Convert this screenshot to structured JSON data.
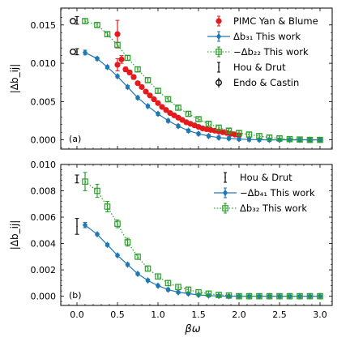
{
  "figure": {
    "xlabel": "βω"
  },
  "colors": {
    "pimc": "#e41a1c",
    "blue": "#1f77b4",
    "green": "#2ca02c",
    "black": "#000000"
  },
  "chart_data": [
    {
      "type": "scatter",
      "panel_label": "(a)",
      "ylabel": "|Δb_ij|",
      "xlim": [
        -0.2,
        3.15
      ],
      "ylim": [
        -0.0012,
        0.0172
      ],
      "xticks": [
        0.0,
        0.5,
        1.0,
        1.5,
        2.0,
        2.5,
        3.0
      ],
      "xticklabels": [
        "",
        "",
        "",
        "",
        "",
        "",
        ""
      ],
      "yticks": [
        0.0,
        0.005,
        0.01,
        0.015
      ],
      "yticklabels": [
        "0.000",
        "0.005",
        "0.010",
        "0.015"
      ],
      "legend_position": "top-right",
      "legend": [
        {
          "label": "PIMC Yan & Blume",
          "marker": "circle",
          "color": "#e41a1c"
        },
        {
          "label": "Δb₃₁ This work",
          "marker": "diamond-line",
          "color": "#1f77b4"
        },
        {
          "label": "−Δb₂₂ This work",
          "marker": "square-dotted",
          "color": "#2ca02c"
        },
        {
          "label": "Hou & Drut",
          "marker": "errorbar",
          "color": "#000000"
        },
        {
          "label": "Endo & Castin",
          "marker": "open-circle",
          "color": "#000000"
        }
      ],
      "series": [
        {
          "name": "PIMC Yan & Blume",
          "style": "circle",
          "color": "#e41a1c",
          "x": [
            0.5,
            0.5,
            0.55,
            0.6,
            0.65,
            0.7,
            0.75,
            0.8,
            0.85,
            0.9,
            0.95,
            1.0,
            1.05,
            1.1,
            1.15,
            1.2,
            1.25,
            1.3,
            1.35,
            1.4,
            1.45,
            1.5,
            1.55,
            1.6,
            1.65,
            1.7,
            1.75,
            1.8,
            1.85,
            1.9,
            1.95,
            2.0
          ],
          "y": [
            0.0138,
            0.0098,
            0.0105,
            0.0092,
            0.0088,
            0.0082,
            0.0074,
            0.0069,
            0.0063,
            0.0058,
            0.0053,
            0.0048,
            0.0043,
            0.0039,
            0.0035,
            0.0032,
            0.0029,
            0.0026,
            0.0023,
            0.0021,
            0.0019,
            0.0017,
            0.0015,
            0.0014,
            0.0013,
            0.0012,
            0.0011,
            0.001,
            0.0009,
            0.0008,
            0.0007,
            0.0006
          ],
          "yerr": [
            0.0018,
            0.0008,
            0.0005,
            0.0003,
            0.0003,
            0.0003,
            0.0002,
            0.0002,
            0.0002,
            0.0002,
            0.0002,
            0.0002,
            0.0002,
            0.0002,
            0.0002,
            0.0002,
            0.0002,
            0.0002,
            0.0002,
            0.0002,
            0.0002,
            0.0002,
            0.0002,
            0.0002,
            0.0002,
            0.0002,
            0.0002,
            0.0002,
            0.0002,
            0.0002,
            0.0002,
            0.0002
          ]
        },
        {
          "name": "Δb₃₁ This work",
          "style": "diamond-line",
          "color": "#1f77b4",
          "x": [
            0.1,
            0.25,
            0.375,
            0.5,
            0.625,
            0.75,
            0.875,
            1.0,
            1.125,
            1.25,
            1.375,
            1.5,
            1.625,
            1.75,
            1.875,
            2.0,
            2.125,
            2.25,
            2.375,
            2.5,
            2.625,
            2.75,
            2.875,
            3.0
          ],
          "y": [
            0.0114,
            0.0106,
            0.0095,
            0.0083,
            0.0069,
            0.0055,
            0.0044,
            0.0034,
            0.0025,
            0.0018,
            0.0012,
            0.0008,
            0.0005,
            0.0003,
            0.0002,
            0.0001,
            5e-05,
            2e-05,
            0.0,
            0.0,
            0.0,
            0.0,
            0.0,
            0.0
          ],
          "yerr": [
            0.0003,
            0.0002,
            0.0002,
            0.0002,
            0.0002,
            0.0002,
            0.0002,
            0.0002,
            0.0002,
            0.0002,
            0.0002,
            0.0002,
            0.0002,
            0.0002,
            0.0002,
            0.0002,
            0.0002,
            0.0002,
            0.0002,
            0.0002,
            0.0002,
            0.0002,
            0.0002,
            0.0002
          ]
        },
        {
          "name": "−Δb₂₂ This work",
          "style": "square-dotted",
          "color": "#2ca02c",
          "x": [
            0.1,
            0.25,
            0.375,
            0.5,
            0.625,
            0.75,
            0.875,
            1.0,
            1.125,
            1.25,
            1.375,
            1.5,
            1.625,
            1.75,
            1.875,
            2.0,
            2.125,
            2.25,
            2.375,
            2.5,
            2.625,
            2.75,
            2.875,
            3.0
          ],
          "y": [
            0.0155,
            0.015,
            0.0138,
            0.0124,
            0.0107,
            0.0092,
            0.0078,
            0.0064,
            0.0053,
            0.0042,
            0.0034,
            0.0027,
            0.0021,
            0.0016,
            0.0012,
            0.0009,
            0.0007,
            0.0005,
            0.0003,
            0.0002,
            0.0001,
            5e-05,
            0.0,
            0.0
          ],
          "yerr": [
            0.0003,
            0.0003,
            0.0003,
            0.0003,
            0.0003,
            0.0003,
            0.0003,
            0.0003,
            0.0003,
            0.0003,
            0.0003,
            0.0003,
            0.0003,
            0.0003,
            0.0003,
            0.0003,
            0.0003,
            0.0003,
            0.0003,
            0.0003,
            0.0003,
            0.0003,
            0.0003,
            0.0003
          ]
        },
        {
          "name": "Hou & Drut",
          "style": "errorbar",
          "color": "#000000",
          "x": [
            0.0,
            0.0
          ],
          "y": [
            0.0156,
            0.0115
          ],
          "yerr": [
            0.0005,
            0.0004
          ]
        },
        {
          "name": "Endo & Castin",
          "style": "open-circle",
          "color": "#000000",
          "x": [
            -0.05,
            -0.05
          ],
          "y": [
            0.0155,
            0.0115
          ],
          "yerr": [
            0.0,
            0.0
          ]
        }
      ]
    },
    {
      "type": "scatter",
      "panel_label": "(b)",
      "ylabel": "|Δb_ij|",
      "xlim": [
        -0.2,
        3.15
      ],
      "ylim": [
        -0.0007,
        0.01
      ],
      "xticks": [
        0.0,
        0.5,
        1.0,
        1.5,
        2.0,
        2.5,
        3.0
      ],
      "xticklabels": [
        "0.0",
        "0.5",
        "1.0",
        "1.5",
        "2.0",
        "2.5",
        "3.0"
      ],
      "yticks": [
        0.0,
        0.002,
        0.004,
        0.006,
        0.008,
        0.01
      ],
      "yticklabels": [
        "0.000",
        "0.002",
        "0.004",
        "0.006",
        "0.008",
        "0.010"
      ],
      "legend_position": "top-right",
      "legend": [
        {
          "label": "Hou & Drut",
          "marker": "errorbar",
          "color": "#000000"
        },
        {
          "label": "−Δb₄₁ This work",
          "marker": "diamond-line",
          "color": "#1f77b4"
        },
        {
          "label": "Δb₃₂ This work",
          "marker": "square-dotted",
          "color": "#2ca02c"
        }
      ],
      "series": [
        {
          "name": "Hou & Drut",
          "style": "errorbar",
          "color": "#000000",
          "x": [
            0.0,
            0.0
          ],
          "y": [
            0.0089,
            0.0053
          ],
          "yerr": [
            0.0003,
            0.0006
          ]
        },
        {
          "name": "−Δb₄₁ This work",
          "style": "diamond-line",
          "color": "#1f77b4",
          "x": [
            0.1,
            0.25,
            0.375,
            0.5,
            0.625,
            0.75,
            0.875,
            1.0,
            1.125,
            1.25,
            1.375,
            1.5,
            1.625,
            1.75,
            1.875,
            2.0,
            2.125,
            2.25,
            2.375,
            2.5,
            2.625,
            2.75,
            2.875,
            3.0
          ],
          "y": [
            0.0054,
            0.0047,
            0.0039,
            0.0031,
            0.0024,
            0.0017,
            0.0012,
            0.0008,
            0.0005,
            0.0003,
            0.0002,
            0.0001,
            5e-05,
            2e-05,
            0.0,
            0.0,
            0.0,
            0.0,
            0.0,
            0.0,
            0.0,
            0.0,
            0.0,
            0.0
          ],
          "yerr": [
            0.0002,
            0.0001,
            0.0001,
            0.0001,
            0.0001,
            0.0001,
            0.0001,
            0.0001,
            0.0001,
            0.0001,
            0.0001,
            0.0001,
            0.0001,
            0.0001,
            0.0001,
            0.0001,
            0.0001,
            0.0001,
            0.0001,
            0.0001,
            0.0001,
            0.0001,
            0.0001,
            0.0001
          ]
        },
        {
          "name": "Δb₃₂ This work",
          "style": "square-dotted",
          "color": "#2ca02c",
          "x": [
            0.1,
            0.25,
            0.375,
            0.5,
            0.625,
            0.75,
            0.875,
            1.0,
            1.125,
            1.25,
            1.375,
            1.5,
            1.625,
            1.75,
            1.875,
            2.0,
            2.125,
            2.25,
            2.375,
            2.5,
            2.625,
            2.75,
            2.875,
            3.0
          ],
          "y": [
            0.0087,
            0.008,
            0.0068,
            0.0055,
            0.0041,
            0.003,
            0.0021,
            0.0015,
            0.001,
            0.0007,
            0.0005,
            0.0003,
            0.0002,
            0.0001,
            5e-05,
            0.0,
            0.0,
            0.0,
            0.0,
            0.0,
            0.0,
            0.0,
            0.0,
            0.0
          ],
          "yerr": [
            0.0007,
            0.0005,
            0.0004,
            0.0003,
            0.0003,
            0.0002,
            0.0002,
            0.0002,
            0.0002,
            0.0002,
            0.0002,
            0.0002,
            0.0002,
            0.0002,
            0.0002,
            0.0002,
            0.0002,
            0.0002,
            0.0002,
            0.0002,
            0.0002,
            0.0002,
            0.0002,
            0.0002
          ]
        }
      ]
    }
  ]
}
